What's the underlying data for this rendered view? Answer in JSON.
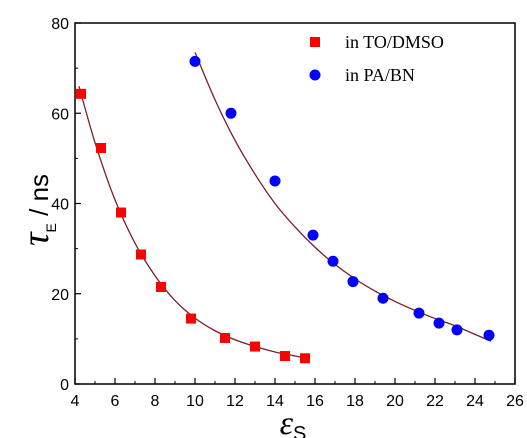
{
  "chart_data": {
    "type": "scatter",
    "title": "",
    "xlabel": "εS",
    "ylabel": "τE / ns",
    "xlabel_parts": {
      "symbol": "ε",
      "sub": "S"
    },
    "ylabel_parts": {
      "symbol": "τ",
      "sub": "E",
      "unit": " / ns"
    },
    "xlim": [
      4,
      26
    ],
    "ylim": [
      0,
      80
    ],
    "xticks": [
      4,
      6,
      8,
      10,
      12,
      14,
      16,
      18,
      20,
      22,
      24,
      26
    ],
    "yticks": [
      0,
      20,
      40,
      60,
      80
    ],
    "grid": false,
    "legend_position": "top-right",
    "series": [
      {
        "name": "in TO/DMSO",
        "marker": "square",
        "color": "#ff0000",
        "x": [
          4.3,
          5.3,
          6.3,
          7.3,
          8.3,
          9.8,
          11.5,
          13.0,
          14.5,
          15.5
        ],
        "y": [
          64.3,
          52.3,
          38.0,
          28.7,
          21.5,
          14.5,
          10.2,
          8.3,
          6.2,
          5.7
        ],
        "fit": {
          "x": [
            4.2,
            5.0,
            6.0,
            7.0,
            8.0,
            9.0,
            10.0,
            11.0,
            12.0,
            13.0,
            14.0,
            15.0,
            15.7
          ],
          "y": [
            66.0,
            53.5,
            40.8,
            31.2,
            24.0,
            18.5,
            14.6,
            11.8,
            9.8,
            8.3,
            7.1,
            6.2,
            5.6
          ]
        }
      },
      {
        "name": "in PA/BN",
        "marker": "circle",
        "color": "#0000ff",
        "x": [
          10.0,
          11.8,
          14.0,
          15.9,
          16.9,
          17.9,
          19.4,
          21.2,
          22.2,
          23.1,
          24.7
        ],
        "y": [
          71.5,
          60.0,
          45.0,
          33.0,
          27.2,
          22.7,
          19.0,
          15.7,
          13.5,
          12.0,
          10.8
        ],
        "fit": {
          "x": [
            10.0,
            11.0,
            12.0,
            13.0,
            14.0,
            15.0,
            16.0,
            17.0,
            18.0,
            19.0,
            20.0,
            21.0,
            22.0,
            23.0,
            24.0,
            24.8
          ],
          "y": [
            73.5,
            63.0,
            54.0,
            46.5,
            40.0,
            34.8,
            30.3,
            26.5,
            23.3,
            20.6,
            18.3,
            16.3,
            14.5,
            12.9,
            11.0,
            9.5
          ]
        }
      }
    ]
  }
}
